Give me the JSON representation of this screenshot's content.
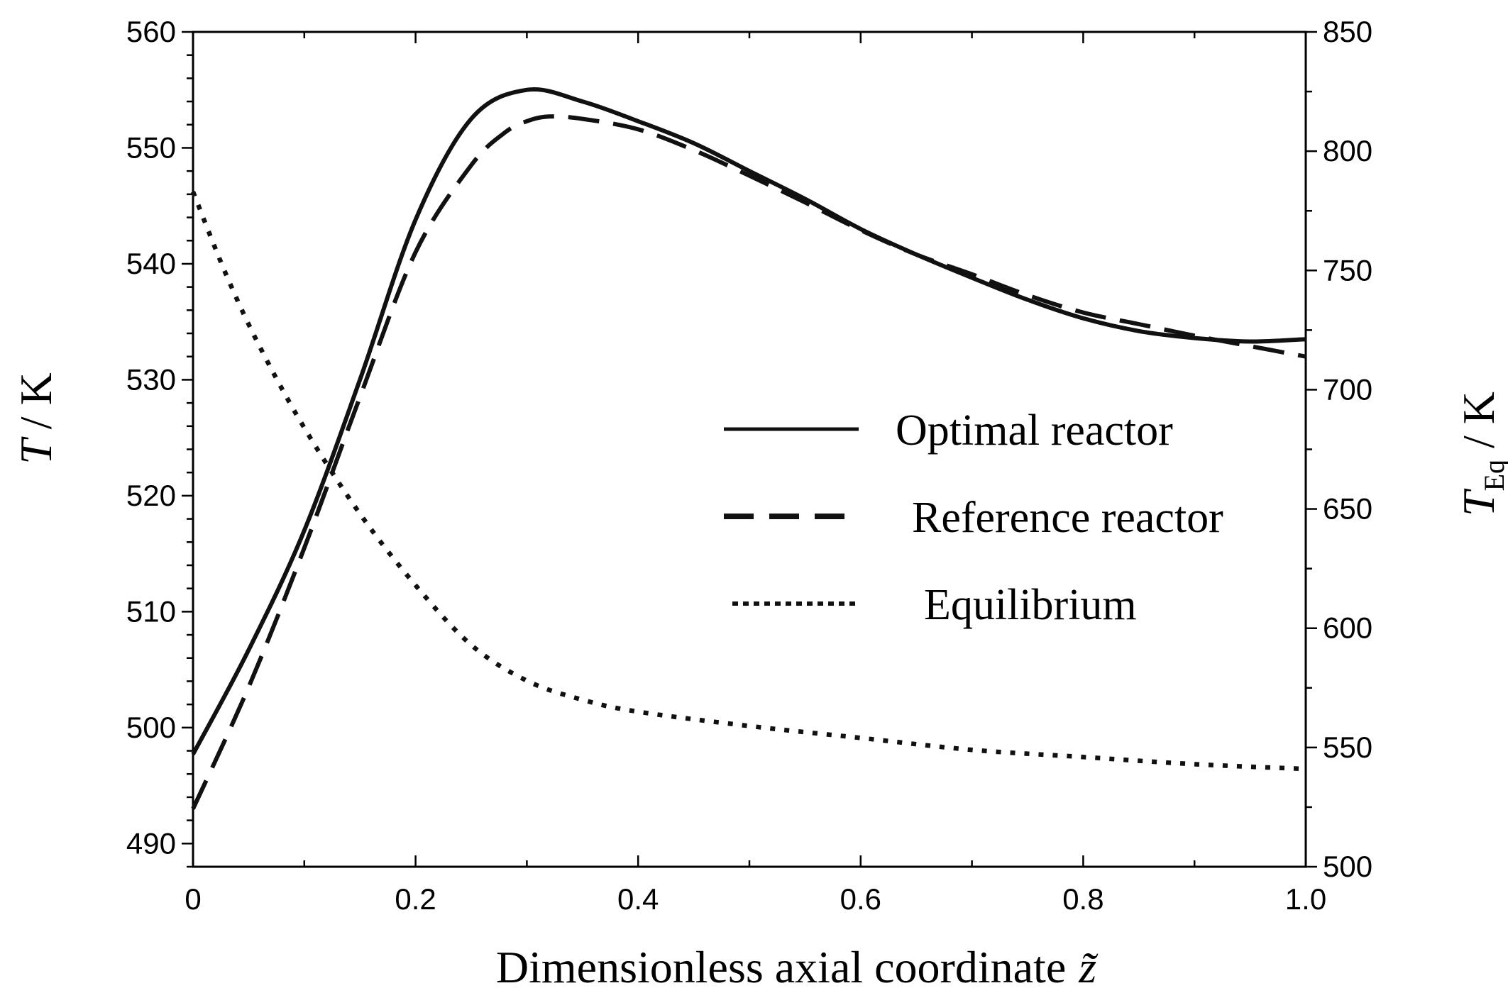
{
  "chart_data": {
    "type": "line",
    "title": "",
    "xlabel": "Dimensionless axial coordinate",
    "xlabel_symbol": "z̃",
    "ylabel_left_symbol": "T",
    "ylabel_left_unit": "/ K",
    "ylabel_right_symbol": "T",
    "ylabel_right_subscript": "Eq",
    "ylabel_right_unit": "/ K",
    "xlim": [
      0,
      1.0
    ],
    "ylim_left": [
      488,
      560
    ],
    "ylim_right": [
      500,
      850
    ],
    "x_ticks": [
      "0",
      "0.2",
      "0.4",
      "0.6",
      "0.8",
      "1.0"
    ],
    "x_tick_values": [
      0,
      0.2,
      0.4,
      0.6,
      0.8,
      1.0
    ],
    "y_left_ticks": [
      "490",
      "500",
      "510",
      "520",
      "530",
      "540",
      "550",
      "560"
    ],
    "y_left_tick_values": [
      490,
      500,
      510,
      520,
      530,
      540,
      550,
      560
    ],
    "y_right_ticks": [
      "500",
      "550",
      "600",
      "650",
      "700",
      "750",
      "800",
      "850"
    ],
    "y_right_tick_values": [
      500,
      550,
      600,
      650,
      700,
      750,
      800,
      850
    ],
    "grid": false,
    "legend_position": "center-right",
    "series": [
      {
        "name": "Optimal reactor",
        "style": "solid",
        "axis": "left",
        "x": [
          0,
          0.05,
          0.1,
          0.15,
          0.2,
          0.25,
          0.3,
          0.35,
          0.4,
          0.45,
          0.5,
          0.55,
          0.6,
          0.65,
          0.7,
          0.75,
          0.8,
          0.85,
          0.9,
          0.95,
          1.0
        ],
        "y": [
          497.7,
          506.7,
          517.0,
          530.0,
          543.8,
          552.5,
          555.0,
          554.0,
          552.3,
          550.4,
          548.0,
          545.6,
          543.0,
          540.8,
          538.8,
          536.9,
          535.3,
          534.2,
          533.6,
          533.3,
          533.5
        ]
      },
      {
        "name": "Reference reactor",
        "style": "dashed",
        "axis": "left",
        "x": [
          0,
          0.05,
          0.1,
          0.15,
          0.2,
          0.25,
          0.28,
          0.3,
          0.32,
          0.35,
          0.4,
          0.45,
          0.5,
          0.55,
          0.6,
          0.65,
          0.7,
          0.75,
          0.8,
          0.85,
          0.9,
          0.95,
          1.0
        ],
        "y": [
          493.0,
          503.5,
          515.5,
          528.5,
          541.0,
          548.5,
          551.3,
          552.3,
          552.7,
          552.5,
          551.6,
          549.8,
          547.6,
          545.3,
          542.9,
          540.8,
          539.1,
          537.3,
          535.8,
          534.8,
          533.8,
          532.9,
          532.0
        ]
      },
      {
        "name": "Equilibrium",
        "style": "dotted",
        "axis": "right",
        "x": [
          0,
          0.03,
          0.06,
          0.1,
          0.15,
          0.2,
          0.25,
          0.3,
          0.35,
          0.4,
          0.5,
          0.6,
          0.7,
          0.8,
          0.9,
          1.0
        ],
        "y": [
          783,
          748,
          718,
          684,
          648,
          618,
          593,
          578,
          570,
          565,
          559,
          554,
          549,
          546,
          543,
          541
        ]
      }
    ]
  }
}
